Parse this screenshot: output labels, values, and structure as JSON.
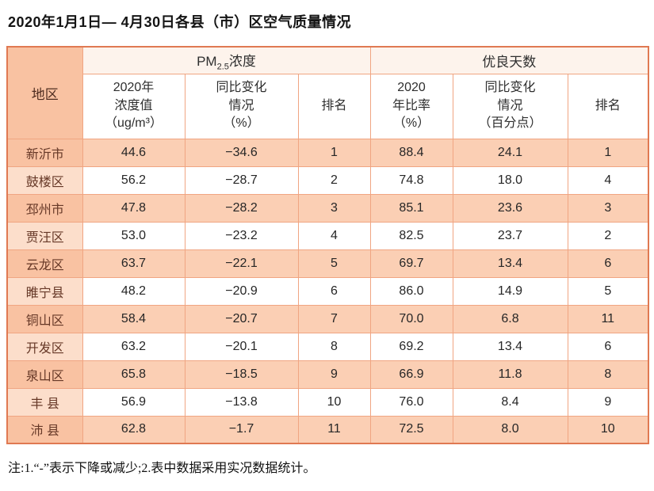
{
  "page": {
    "title": "2020年1月1日— 4月30日各县（市）区空气质量情况",
    "note": "注:1.“-”表示下降或减少;2.表中数据采用实况数据统计。"
  },
  "table": {
    "region_header": "地区",
    "pm_group": {
      "prefix": "PM",
      "sub": "2.5",
      "suffix": "浓度"
    },
    "good_days_group": "优良天数",
    "subheaders": [
      {
        "line1": "2020年",
        "line2": "浓度值",
        "line3": "（ug/m³）"
      },
      {
        "line1": "同比变化",
        "line2": "情况",
        "line3": "（%）"
      },
      {
        "line1": "排名",
        "line2": "",
        "line3": ""
      },
      {
        "line1": "2020",
        "line2": "年比率",
        "line3": "（%）"
      },
      {
        "line1": "同比变化",
        "line2": "情况",
        "line3": "（百分点）"
      },
      {
        "line1": "排名",
        "line2": "",
        "line3": ""
      }
    ],
    "rows": [
      {
        "region": "新沂市",
        "values": [
          "44.6",
          "−34.6",
          "1",
          "88.4",
          "24.1",
          "1"
        ]
      },
      {
        "region": "鼓楼区",
        "values": [
          "56.2",
          "−28.7",
          "2",
          "74.8",
          "18.0",
          "4"
        ]
      },
      {
        "region": "邳州市",
        "values": [
          "47.8",
          "−28.2",
          "3",
          "85.1",
          "23.6",
          "3"
        ]
      },
      {
        "region": "贾汪区",
        "values": [
          "53.0",
          "−23.2",
          "4",
          "82.5",
          "23.7",
          "2"
        ]
      },
      {
        "region": "云龙区",
        "values": [
          "63.7",
          "−22.1",
          "5",
          "69.7",
          "13.4",
          "6"
        ]
      },
      {
        "region": "睢宁县",
        "values": [
          "48.2",
          "−20.9",
          "6",
          "86.0",
          "14.9",
          "5"
        ]
      },
      {
        "region": "铜山区",
        "values": [
          "58.4",
          "−20.7",
          "7",
          "70.0",
          "6.8",
          "11"
        ]
      },
      {
        "region": "开发区",
        "values": [
          "63.2",
          "−20.1",
          "8",
          "69.2",
          "13.4",
          "6"
        ]
      },
      {
        "region": "泉山区",
        "values": [
          "65.8",
          "−18.5",
          "9",
          "66.9",
          "11.8",
          "8"
        ]
      },
      {
        "region": "丰 县",
        "values": [
          "56.9",
          "−13.8",
          "10",
          "76.0",
          "8.4",
          "9"
        ]
      },
      {
        "region": "沛 县",
        "values": [
          "62.8",
          "−1.7",
          "11",
          "72.5",
          "8.0",
          "10"
        ]
      }
    ]
  }
}
